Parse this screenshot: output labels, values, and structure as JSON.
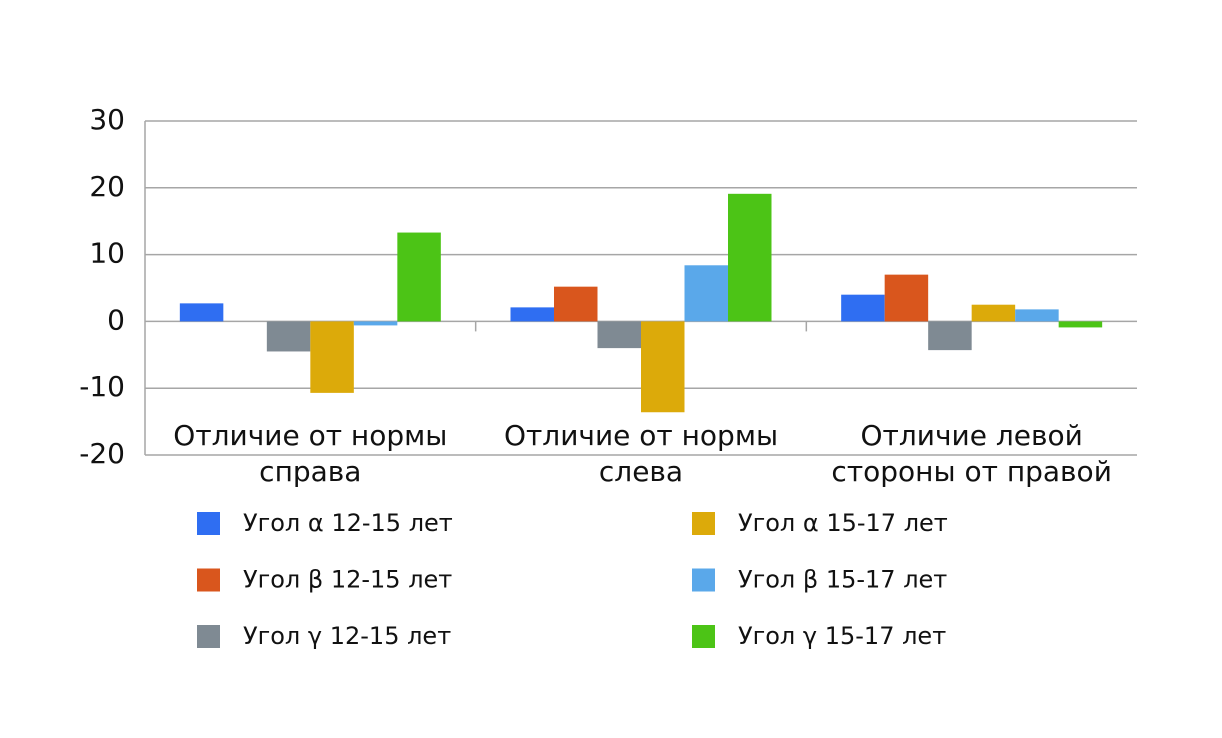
{
  "chart_data": {
    "type": "bar",
    "categories": [
      "Отличие от нормы справа",
      "Отличие от нормы слева",
      "Отличие левой стороны от правой"
    ],
    "series": [
      {
        "name": "Угол α 12-15 лет",
        "color": "#2f6ef2",
        "values": [
          2.7,
          2.1,
          4.0
        ]
      },
      {
        "name": "Угол β 12-15 лет",
        "color": "#d9561d",
        "values": [
          0,
          5.2,
          7.0
        ]
      },
      {
        "name": "Угол γ 12-15 лет",
        "color": "#7f8a93",
        "values": [
          -4.5,
          -4.0,
          -4.3
        ]
      },
      {
        "name": "Угол α 15-17 лет",
        "color": "#dcaa0a",
        "values": [
          -10.7,
          -13.6,
          2.5
        ]
      },
      {
        "name": "Угол β 15-17 лет",
        "color": "#5aa8ea",
        "values": [
          -0.6,
          8.4,
          1.8
        ]
      },
      {
        "name": "Угол γ 15-17 лет",
        "color": "#4cc416",
        "values": [
          13.3,
          19.1,
          -0.9
        ]
      }
    ],
    "ylim": [
      -20,
      30
    ],
    "yticks": [
      -20,
      -10,
      0,
      10,
      20,
      30
    ],
    "grid": true,
    "legend": "bottom"
  }
}
